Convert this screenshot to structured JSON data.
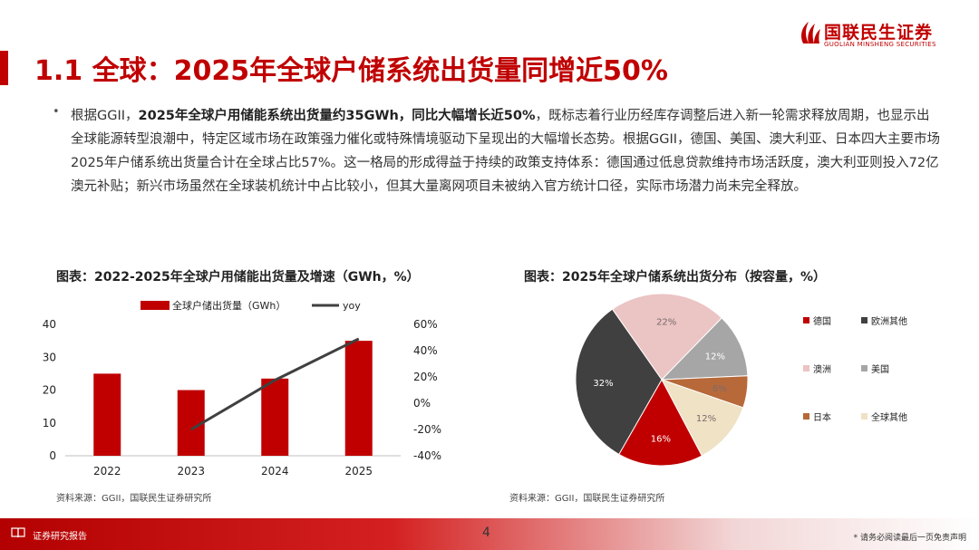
{
  "logo": {
    "name_cn": "国联民生证券",
    "name_en": "GUOLIAN MINSHENG SECURITIES"
  },
  "title": "1.1 全球：2025年全球户储系统出货量同增近50%",
  "body": {
    "p1": "根据GGII，",
    "bold": "2025年全球户用储能系统出货量约35GWh，同比大幅增长近50%",
    "p2": "，既标志着行业历经库存调整后进入新一轮需求释放周期，也显示出全球能源转型浪潮中，特定区域市场在政策强力催化或特殊情境驱动下呈现出的大幅增长态势。根据GGII，德国、美国、澳大利亚、日本四大主要市场2025年户储系统出货量合计在全球占比57%。这一格局的形成得益于持续的政策支持体系：德国通过低息贷款维持市场活跃度，澳大利亚则投入72亿澳元补贴；新兴市场虽然在全球装机统计中占比较小，但其大量离网项目未被纳入官方统计口径，实际市场潜力尚未完全释放。"
  },
  "chart_data": [
    {
      "type": "bar",
      "title": "图表：2022-2025年全球户用储能出货量及增速（GWh，%）",
      "categories": [
        "2022",
        "2023",
        "2024",
        "2025"
      ],
      "series": [
        {
          "name": "全球户储出货量（GWh）",
          "type": "bar",
          "axis": "left",
          "values": [
            25,
            20,
            23.5,
            35
          ],
          "color": "#c00000"
        },
        {
          "name": "yoy",
          "type": "line",
          "axis": "right",
          "values": [
            null,
            -0.2,
            0.175,
            0.49
          ],
          "color": "#404040"
        }
      ],
      "ylim": [
        0,
        40
      ],
      "yticks": [
        0,
        10,
        20,
        30,
        40
      ],
      "y2lim": [
        -0.4,
        0.6
      ],
      "y2ticks": [
        "-40%",
        "-20%",
        "0%",
        "20%",
        "40%",
        "60%"
      ],
      "legend_position": "top",
      "source": "资料来源：GGII，国联民生证券研究所"
    },
    {
      "type": "pie",
      "title": "图表：2025年全球户储系统出货分布（按容量，%）",
      "slices": [
        {
          "name": "德国",
          "value": 16,
          "label": "16%",
          "color": "#c00000"
        },
        {
          "name": "欧洲其他",
          "value": 32,
          "label": "32%",
          "color": "#404040"
        },
        {
          "name": "澳洲",
          "value": 22,
          "label": "22%",
          "color": "#ebc4c4"
        },
        {
          "name": "美国",
          "value": 12,
          "label": "12%",
          "color": "#a6a6a6"
        },
        {
          "name": "日本",
          "value": 6,
          "label": "6%",
          "color": "#b7693a"
        },
        {
          "name": "全球其他",
          "value": 12,
          "label": "12%",
          "color": "#efe2c5"
        }
      ],
      "legend_position": "right",
      "source": "资料来源：GGII，国联民生证券研究所"
    }
  ],
  "footer": {
    "label": "证券研究报告",
    "page": "4",
    "disclaimer": "* 请务必阅读最后一页免责声明"
  }
}
